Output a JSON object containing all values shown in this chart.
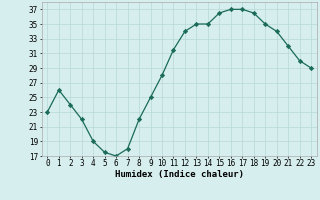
{
  "x": [
    0,
    1,
    2,
    3,
    4,
    5,
    6,
    7,
    8,
    9,
    10,
    11,
    12,
    13,
    14,
    15,
    16,
    17,
    18,
    19,
    20,
    21,
    22,
    23
  ],
  "y": [
    23,
    26,
    24,
    22,
    19,
    17.5,
    17,
    18,
    22,
    25,
    28,
    31.5,
    34,
    35,
    35,
    36.5,
    37,
    37,
    36.5,
    35,
    34,
    32,
    30,
    29
  ],
  "xlabel": "Humidex (Indice chaleur)",
  "ylabel": "",
  "ylim": [
    17,
    38
  ],
  "xlim": [
    -0.5,
    23.5
  ],
  "yticks": [
    17,
    19,
    21,
    23,
    25,
    27,
    29,
    31,
    33,
    35,
    37
  ],
  "xticks": [
    0,
    1,
    2,
    3,
    4,
    5,
    6,
    7,
    8,
    9,
    10,
    11,
    12,
    13,
    14,
    15,
    16,
    17,
    18,
    19,
    20,
    21,
    22,
    23
  ],
  "line_color": "#1a6b5a",
  "marker": "D",
  "marker_size": 2.2,
  "bg_color": "#d6eeee",
  "grid_color": "#b8d8d8",
  "axis_fontsize": 6.5,
  "tick_fontsize": 5.5
}
